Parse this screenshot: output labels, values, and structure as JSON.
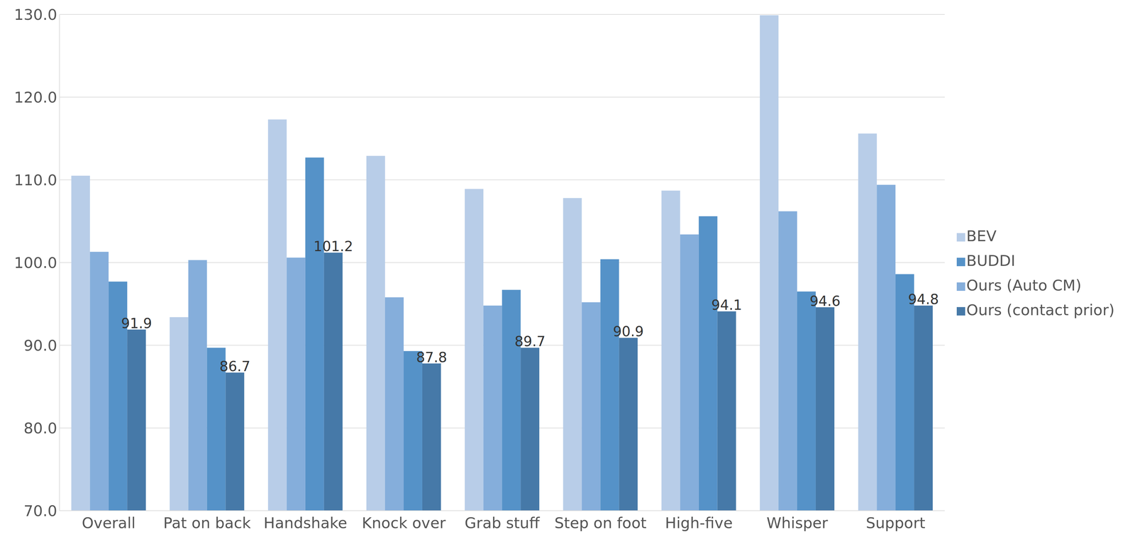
{
  "chart_data": {
    "type": "bar",
    "categories": [
      "Overall",
      "Pat on back",
      "Handshake",
      "Knock over",
      "Grab stuff",
      "Step on foot",
      "High-five",
      "Whisper",
      "Support"
    ],
    "series": [
      {
        "name": "BEV",
        "color": "#b8cde8",
        "values": [
          110.5,
          93.4,
          117.3,
          112.9,
          108.9,
          107.8,
          108.7,
          129.9,
          115.6
        ]
      },
      {
        "name": "Ours (Auto CM)",
        "color": "#85aedb",
        "values": [
          101.3,
          100.3,
          100.6,
          95.8,
          94.8,
          95.2,
          103.4,
          106.2,
          109.4
        ]
      },
      {
        "name": "BUDDI",
        "color": "#5592c8",
        "values": [
          97.7,
          89.7,
          112.7,
          89.3,
          96.7,
          100.4,
          105.6,
          96.5,
          98.6
        ]
      },
      {
        "name": "Ours (contact prior)",
        "color": "#4679a8",
        "values": [
          91.9,
          86.7,
          101.2,
          87.8,
          89.7,
          90.9,
          94.1,
          94.6,
          94.8
        ],
        "data_labels": true
      }
    ],
    "ylim": [
      70,
      130
    ],
    "yticks": [
      {
        "value": 70,
        "label": "70.0"
      },
      {
        "value": 80,
        "label": "80.0"
      },
      {
        "value": 90,
        "label": "90.0"
      },
      {
        "value": 100,
        "label": "100.0"
      },
      {
        "value": 110,
        "label": "110.0"
      },
      {
        "value": 120,
        "label": "120.0"
      },
      {
        "value": 130,
        "label": "130.0"
      }
    ],
    "grid": true,
    "legend": "right"
  }
}
